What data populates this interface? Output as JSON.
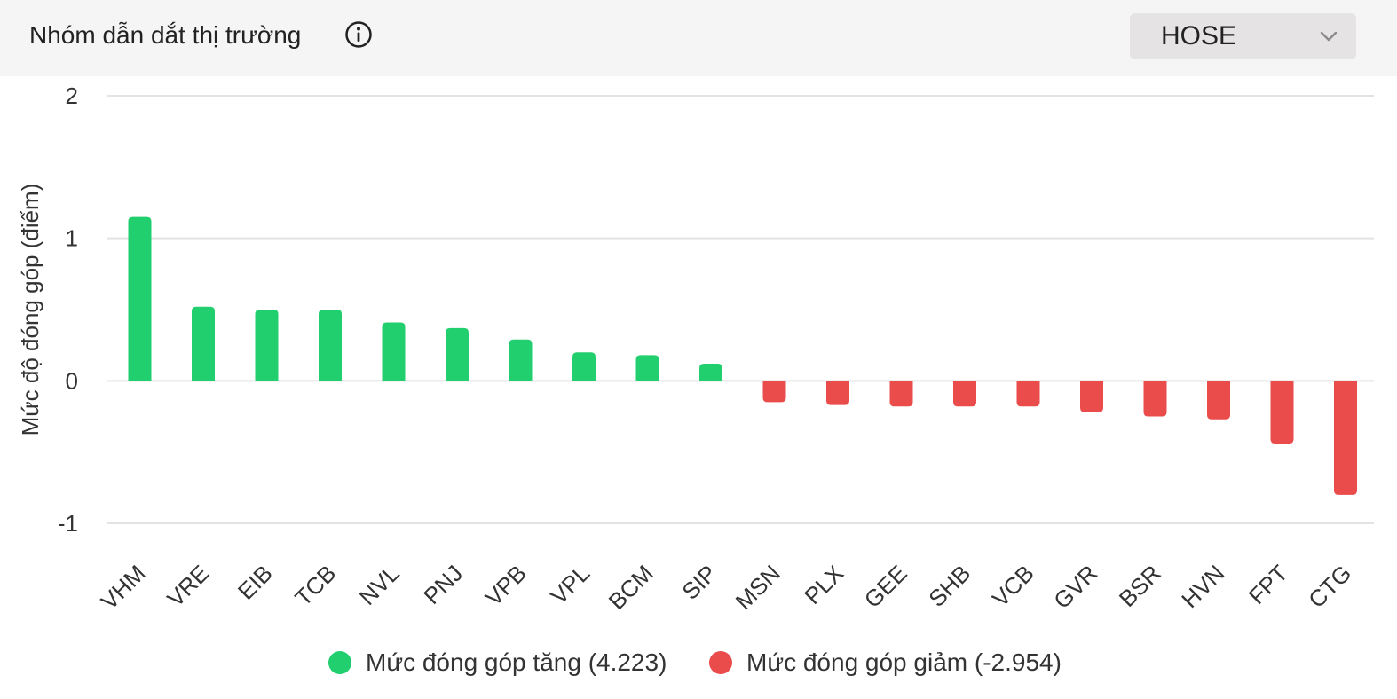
{
  "header": {
    "title": "Nhóm dẫn dắt thị trường",
    "info_icon": "info-circle-icon",
    "exchange_select": {
      "value": "HOSE",
      "icon": "chevron-down-icon"
    }
  },
  "colors": {
    "positive": "#22cf6e",
    "negative": "#ea4b4b",
    "grid": "#e3e3e3",
    "text": "#333333",
    "header_bg": "#f5f5f5"
  },
  "chart_data": {
    "type": "bar",
    "title": "",
    "xlabel": "",
    "ylabel": "Mức độ đóng góp (điểm)",
    "ylim": [
      -1,
      2
    ],
    "yticks": [
      2,
      1,
      0,
      -1
    ],
    "grid": true,
    "legend_position": "bottom",
    "categories": [
      "VHM",
      "VRE",
      "EIB",
      "TCB",
      "NVL",
      "PNJ",
      "VPB",
      "VPL",
      "BCM",
      "SIP",
      "MSN",
      "PLX",
      "GEE",
      "SHB",
      "VCB",
      "GVR",
      "BSR",
      "HVN",
      "FPT",
      "CTG"
    ],
    "values": [
      1.15,
      0.52,
      0.5,
      0.5,
      0.41,
      0.37,
      0.29,
      0.2,
      0.18,
      0.12,
      -0.15,
      -0.17,
      -0.18,
      -0.18,
      -0.18,
      -0.22,
      -0.25,
      -0.27,
      -0.44,
      -0.8
    ],
    "series": [
      {
        "name": "Mức đóng góp tăng (4.223)",
        "color": "#22cf6e"
      },
      {
        "name": "Mức đóng góp giảm (-2.954)",
        "color": "#ea4b4b"
      }
    ]
  }
}
